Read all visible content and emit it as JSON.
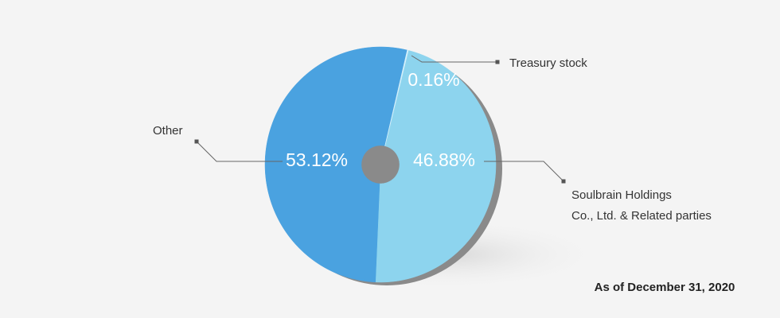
{
  "chart_data": {
    "type": "pie",
    "subtitle": "As of December 31, 2020",
    "categories": [
      "Soulbrain Holdings\nCo., Ltd. & Related parties",
      "Other",
      "Treasury stock"
    ],
    "values": [
      46.88,
      53.12,
      0.16
    ],
    "value_labels": [
      "46.88%",
      "53.12%",
      "0.16%"
    ],
    "colors": [
      "#8dd4ee",
      "#4aa2e0",
      "#d4f0fb"
    ]
  }
}
